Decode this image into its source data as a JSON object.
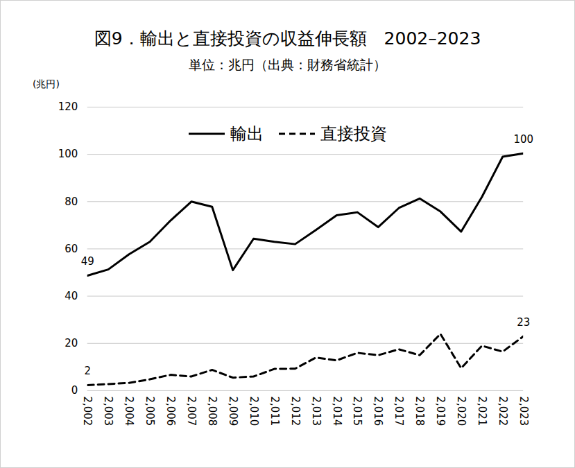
{
  "chart_data": {
    "type": "line",
    "title": "図9．輸出と直接投資の収益伸長額　2002–2023",
    "subtitle": "単位：兆円（出典：財務省統計）",
    "y_label": "(兆円)",
    "x": [
      2002,
      2003,
      2004,
      2005,
      2006,
      2007,
      2008,
      2009,
      2010,
      2011,
      2012,
      2013,
      2014,
      2015,
      2016,
      2017,
      2018,
      2019,
      2020,
      2021,
      2022,
      2023
    ],
    "series": [
      {
        "name": "輸出",
        "color": "#000000",
        "line_style": "solid",
        "values": [
          48.7,
          51.3,
          57.7,
          63,
          72,
          80,
          77.8,
          51,
          64.3,
          63,
          62,
          68,
          74.2,
          75.5,
          69.2,
          77.3,
          81.3,
          75.8,
          67.3,
          82,
          99,
          100.4
        ]
      },
      {
        "name": "直接投資",
        "color": "#000000",
        "line_style": "dashed",
        "values": [
          2.3,
          2.8,
          3.3,
          4.8,
          6.7,
          6,
          8.8,
          5.5,
          6,
          9.2,
          9.3,
          14,
          12.8,
          16,
          15,
          17.5,
          15,
          24,
          9.5,
          19,
          16.5,
          23
        ]
      }
    ],
    "annotations": [
      {
        "series": "輸出",
        "x": 2002,
        "text": "49"
      },
      {
        "series": "輸出",
        "x": 2023,
        "text": "100"
      },
      {
        "series": "直接投資",
        "x": 2002,
        "text": "2"
      },
      {
        "series": "直接投資",
        "x": 2023,
        "text": "23"
      }
    ],
    "ylim": [
      0,
      120
    ],
    "yticks": [
      0,
      20,
      40,
      60,
      80,
      100,
      120
    ],
    "grid": true,
    "legend": "top"
  }
}
